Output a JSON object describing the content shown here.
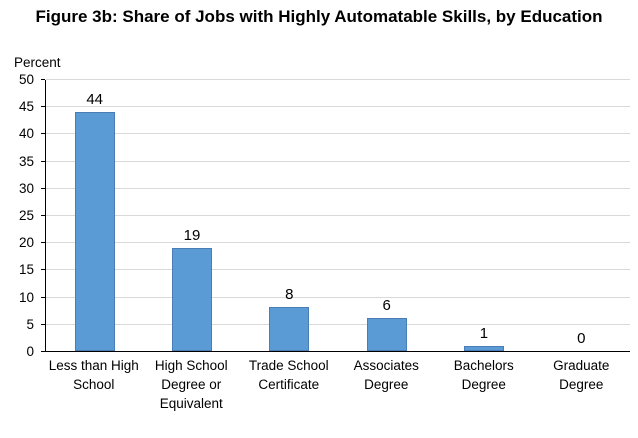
{
  "chart_data": {
    "type": "bar",
    "title": "Figure 3b: Share of Jobs with Highly Automatable Skills, by Education",
    "ylabel": "Percent",
    "xlabel": "",
    "categories": [
      "Less than High School",
      "High School Degree or Equivalent",
      "Trade School Certificate",
      "Associates Degree",
      "Bachelors Degree",
      "Graduate Degree"
    ],
    "values": [
      44,
      19,
      8,
      6,
      1,
      0
    ],
    "ylim": [
      0,
      50
    ],
    "ytick_step": 5,
    "grid": true,
    "legend_position": "none",
    "bar_color": "#5B9BD5",
    "bar_border_color": "#4A7DB5",
    "gridline_color": "#D9D9D9",
    "axis_color": "#000000",
    "text_color": "#000000"
  }
}
